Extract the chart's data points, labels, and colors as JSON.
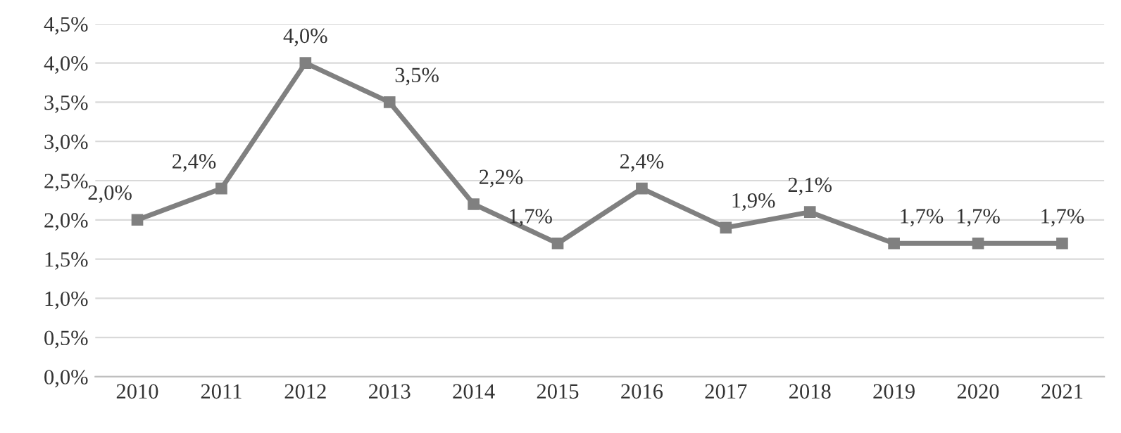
{
  "chart_data": {
    "type": "line",
    "categories": [
      "2010",
      "2011",
      "2012",
      "2013",
      "2014",
      "2015",
      "2016",
      "2017",
      "2018",
      "2019",
      "2020",
      "2021"
    ],
    "series": [
      {
        "color": "#808080",
        "values": [
          2.0,
          2.4,
          4.0,
          3.5,
          2.2,
          1.7,
          2.4,
          1.9,
          2.1,
          1.7,
          1.7,
          1.7
        ],
        "value_labels": [
          "2,0%",
          "2,4%",
          "4,0%",
          "3,5%",
          "2,2%",
          "1,7%",
          "2,4%",
          "1,9%",
          "2,1%",
          "1,7%",
          "1,7%",
          "1,7%"
        ]
      }
    ],
    "ylim": [
      0,
      4.5
    ],
    "yticks": [
      {
        "value": 0,
        "label": "0,0%"
      },
      {
        "value": 0.5,
        "label": "0,5%"
      },
      {
        "value": 1,
        "label": "1,0%"
      },
      {
        "value": 1.5,
        "label": "1,5%"
      },
      {
        "value": 2,
        "label": "2,0%"
      },
      {
        "value": 2.5,
        "label": "2,5%"
      },
      {
        "value": 3,
        "label": "3,0%"
      },
      {
        "value": 3.5,
        "label": "3,5%"
      },
      {
        "value": 4,
        "label": "4,0%"
      },
      {
        "value": 4.5,
        "label": "4,5%"
      }
    ],
    "grid": "y",
    "marker": "square",
    "line_style": "solid",
    "legend": false
  }
}
